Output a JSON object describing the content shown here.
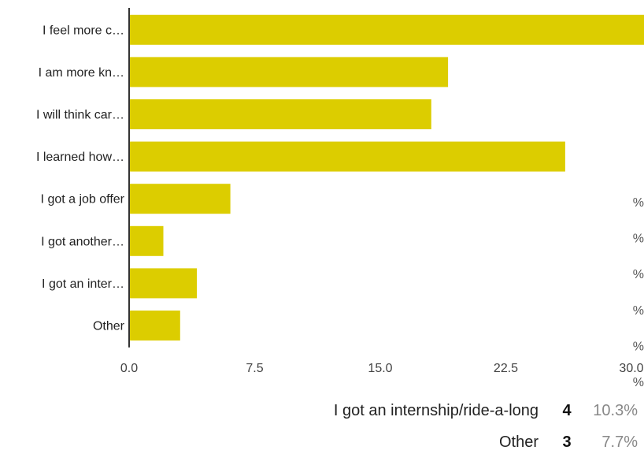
{
  "chart_data": {
    "type": "bar",
    "orientation": "horizontal",
    "categories": [
      "I feel more c…",
      "I am more kn…",
      "I will think car…",
      "I learned how…",
      "I got a job offer",
      "I got another…",
      "I got an inter…",
      "Other"
    ],
    "values": [
      31,
      19,
      18,
      26,
      6,
      2,
      4,
      3
    ],
    "xlim": [
      0,
      30
    ],
    "xticks": [
      "0.0",
      "7.5",
      "15.0",
      "22.5",
      "30.0"
    ],
    "bar_color": "#dccd00",
    "grid": false
  },
  "right_clipped_fragments": [
    "%",
    "%",
    "%",
    "%",
    "%",
    "%"
  ],
  "legend_table": [
    {
      "label": "I got an internship/ride-a-long",
      "count": "4",
      "percent": "10.3%"
    },
    {
      "label": "Other",
      "count": "3",
      "percent": "7.7%"
    }
  ]
}
